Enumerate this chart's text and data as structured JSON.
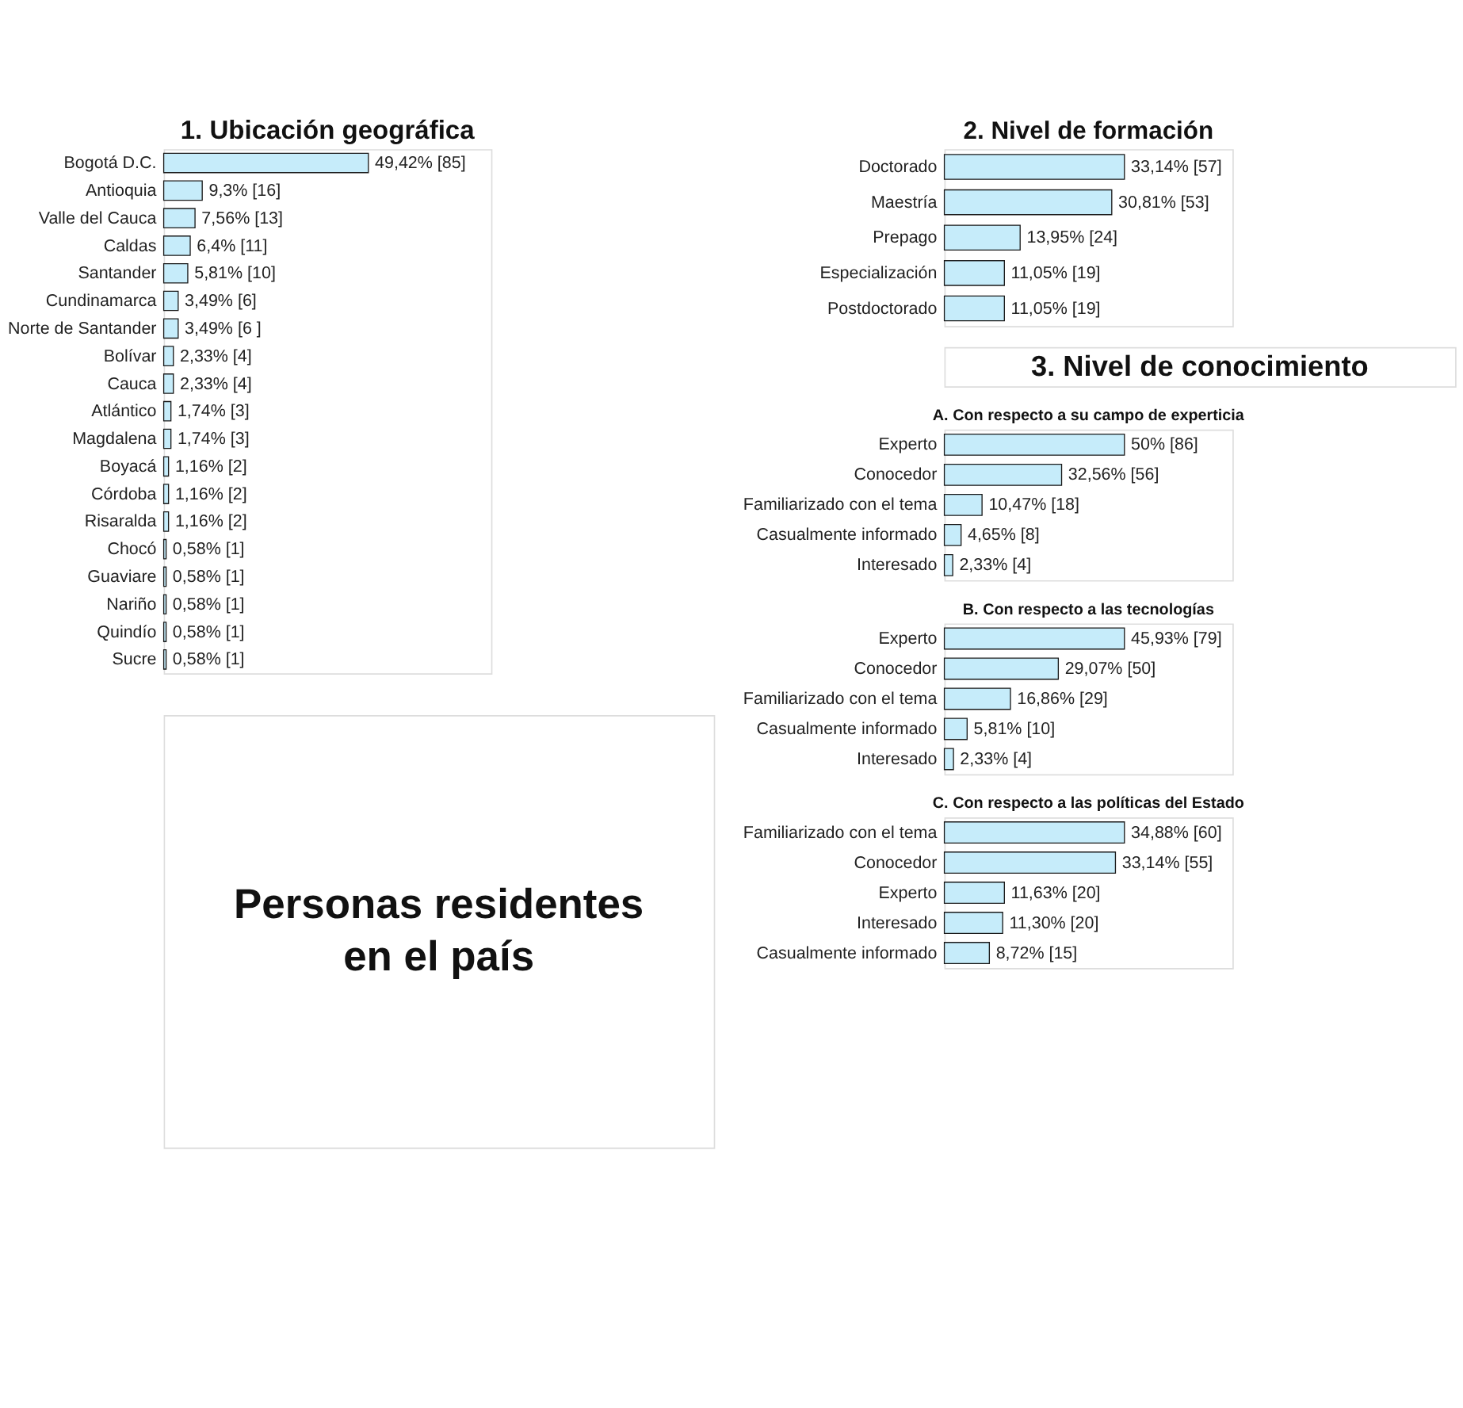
{
  "chart_data": [
    {
      "type": "bar",
      "orientation": "horizontal",
      "title": "1. Ubicación geográfica",
      "color": "#c6ecfa",
      "categories": [
        "Bogotá D.C.",
        "Antioquia",
        "Valle del Cauca",
        "Caldas",
        "Santander",
        "Cundinamarca",
        "Norte de Santander",
        "Bolívar",
        "Cauca",
        "Atlántico",
        "Magdalena",
        "Boyacá",
        "Córdoba",
        "Risaralda",
        "Chocó",
        "Guaviare",
        "Nariño",
        "Quindío",
        "Sucre"
      ],
      "values": [
        49.42,
        9.3,
        7.56,
        6.4,
        5.81,
        3.49,
        3.49,
        2.33,
        2.33,
        1.74,
        1.74,
        1.16,
        1.16,
        1.16,
        0.58,
        0.58,
        0.58,
        0.58,
        0.58
      ],
      "value_labels": [
        "49,42% [85]",
        "9,3% [16]",
        "7,56% [13]",
        "6,4% [11]",
        "5,81% [10]",
        "3,49% [6]",
        "3,49% [6 ]",
        "2,33% [4]",
        "2,33% [4]",
        "1,74% [3]",
        "1,74% [3]",
        "1,16% [2]",
        "1,16% [2]",
        "1,16% [2]",
        "0,58% [1]",
        "0,58% [1]",
        "0,58% [1]",
        "0,58% [1]",
        "0,58% [1]"
      ]
    },
    {
      "type": "bar",
      "orientation": "horizontal",
      "title": "2. Nivel de formación",
      "color": "#c6ecfa",
      "categories": [
        "Doctorado",
        "Maestría",
        "Prepago",
        "Especialización",
        "Postdoctorado"
      ],
      "values": [
        33.14,
        30.81,
        13.95,
        11.05,
        11.05
      ],
      "value_labels": [
        "33,14% [57]",
        "30,81% [53]",
        "13,95% [24]",
        "11,05% [19]",
        "11,05% [19]"
      ]
    },
    {
      "type": "other",
      "title": "3. Nivel de conocimiento"
    },
    {
      "type": "bar",
      "orientation": "horizontal",
      "title": "A. Con respecto a su campo de experticia",
      "color": "#c6ecfa",
      "categories": [
        "Experto",
        "Conocedor",
        "Familiarizado con el tema",
        "Casualmente informado",
        "Interesado"
      ],
      "values": [
        50,
        32.56,
        10.47,
        4.65,
        2.33
      ],
      "value_labels": [
        "50% [86]",
        "32,56% [56]",
        "10,47% [18]",
        "4,65% [8]",
        "2,33% [4]"
      ]
    },
    {
      "type": "bar",
      "orientation": "horizontal",
      "title": "B. Con respecto a las tecnologías",
      "color": "#c6ecfa",
      "categories": [
        "Experto",
        "Conocedor",
        "Familiarizado con el tema",
        "Casualmente informado",
        "Interesado"
      ],
      "values": [
        45.93,
        29.07,
        16.86,
        5.81,
        2.33
      ],
      "value_labels": [
        "45,93% [79]",
        "29,07% [50]",
        "16,86% [29]",
        "5,81% [10]",
        "2,33% [4]"
      ]
    },
    {
      "type": "bar",
      "orientation": "horizontal",
      "title": "C. Con respecto a las políticas del Estado",
      "color": "#c6ecfa",
      "categories": [
        "Familiarizado con el tema",
        "Conocedor",
        "Experto",
        "Interesado",
        "Casualmente informado"
      ],
      "values": [
        34.88,
        33.14,
        11.63,
        11.3,
        8.72
      ],
      "value_labels": [
        "34,88% [60]",
        "33,14% [55]",
        "11,63% [20]",
        "11,30% [20]",
        "8,72% [15]"
      ]
    },
    {
      "type": "other",
      "title": "Personas residentes en el país"
    }
  ]
}
